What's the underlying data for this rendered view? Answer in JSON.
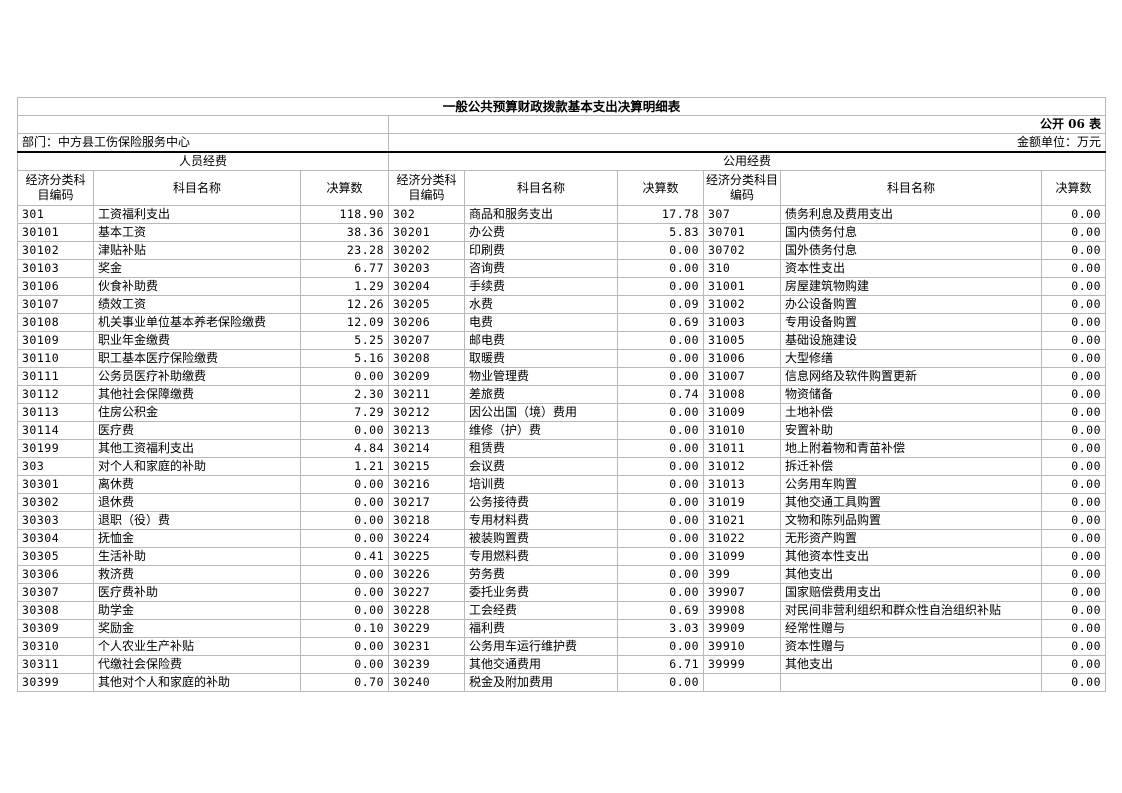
{
  "title": "一般公共预算财政拨款基本支出决算明细表",
  "table_no": "公开 06 表",
  "department": "部门：中方县工伤保险服务中心",
  "unit": "金额单位：万元",
  "sections": {
    "personnel": "人员经费",
    "public": "公用经费"
  },
  "headers": {
    "code": "经济分类科目编码",
    "name": "科目名称",
    "amount": "决算数"
  },
  "personnel_rows": [
    {
      "code": "301",
      "name": "工资福利支出",
      "amount": "118.90"
    },
    {
      "code": "30101",
      "name": "基本工资",
      "amount": "38.36"
    },
    {
      "code": "30102",
      "name": "津贴补贴",
      "amount": "23.28"
    },
    {
      "code": "30103",
      "name": "奖金",
      "amount": "6.77"
    },
    {
      "code": "30106",
      "name": "伙食补助费",
      "amount": "1.29"
    },
    {
      "code": "30107",
      "name": "绩效工资",
      "amount": "12.26"
    },
    {
      "code": "30108",
      "name": "机关事业单位基本养老保险缴费",
      "amount": "12.09"
    },
    {
      "code": "30109",
      "name": "职业年金缴费",
      "amount": "5.25"
    },
    {
      "code": "30110",
      "name": "职工基本医疗保险缴费",
      "amount": "5.16"
    },
    {
      "code": "30111",
      "name": "公务员医疗补助缴费",
      "amount": "0.00"
    },
    {
      "code": "30112",
      "name": "其他社会保障缴费",
      "amount": "2.30"
    },
    {
      "code": "30113",
      "name": "住房公积金",
      "amount": "7.29"
    },
    {
      "code": "30114",
      "name": "医疗费",
      "amount": "0.00"
    },
    {
      "code": "30199",
      "name": "其他工资福利支出",
      "amount": "4.84"
    },
    {
      "code": "303",
      "name": "对个人和家庭的补助",
      "amount": "1.21"
    },
    {
      "code": "30301",
      "name": "离休费",
      "amount": "0.00"
    },
    {
      "code": "30302",
      "name": "退休费",
      "amount": "0.00"
    },
    {
      "code": "30303",
      "name": "退职（役）费",
      "amount": "0.00"
    },
    {
      "code": "30304",
      "name": "抚恤金",
      "amount": "0.00"
    },
    {
      "code": "30305",
      "name": "生活补助",
      "amount": "0.41"
    },
    {
      "code": "30306",
      "name": "救济费",
      "amount": "0.00"
    },
    {
      "code": "30307",
      "name": "医疗费补助",
      "amount": "0.00"
    },
    {
      "code": "30308",
      "name": "助学金",
      "amount": "0.00"
    },
    {
      "code": "30309",
      "name": "奖励金",
      "amount": "0.10"
    },
    {
      "code": "30310",
      "name": "个人农业生产补贴",
      "amount": "0.00"
    },
    {
      "code": "30311",
      "name": "代缴社会保险费",
      "amount": "0.00"
    },
    {
      "code": "30399",
      "name": "其他对个人和家庭的补助",
      "amount": "0.70"
    }
  ],
  "public_rows_a": [
    {
      "code": "302",
      "name": "商品和服务支出",
      "amount": "17.78"
    },
    {
      "code": "30201",
      "name": "办公费",
      "amount": "5.83"
    },
    {
      "code": "30202",
      "name": "印刷费",
      "amount": "0.00"
    },
    {
      "code": "30203",
      "name": "咨询费",
      "amount": "0.00"
    },
    {
      "code": "30204",
      "name": "手续费",
      "amount": "0.00"
    },
    {
      "code": "30205",
      "name": "水费",
      "amount": "0.09"
    },
    {
      "code": "30206",
      "name": "电费",
      "amount": "0.69"
    },
    {
      "code": "30207",
      "name": "邮电费",
      "amount": "0.00"
    },
    {
      "code": "30208",
      "name": "取暖费",
      "amount": "0.00"
    },
    {
      "code": "30209",
      "name": "物业管理费",
      "amount": "0.00"
    },
    {
      "code": "30211",
      "name": "差旅费",
      "amount": "0.74"
    },
    {
      "code": "30212",
      "name": "因公出国（境）费用",
      "amount": "0.00"
    },
    {
      "code": "30213",
      "name": "维修（护）费",
      "amount": "0.00"
    },
    {
      "code": "30214",
      "name": "租赁费",
      "amount": "0.00"
    },
    {
      "code": "30215",
      "name": "会议费",
      "amount": "0.00"
    },
    {
      "code": "30216",
      "name": "培训费",
      "amount": "0.00"
    },
    {
      "code": "30217",
      "name": "公务接待费",
      "amount": "0.00"
    },
    {
      "code": "30218",
      "name": "专用材料费",
      "amount": "0.00"
    },
    {
      "code": "30224",
      "name": "被装购置费",
      "amount": "0.00"
    },
    {
      "code": "30225",
      "name": "专用燃料费",
      "amount": "0.00"
    },
    {
      "code": "30226",
      "name": "劳务费",
      "amount": "0.00"
    },
    {
      "code": "30227",
      "name": "委托业务费",
      "amount": "0.00"
    },
    {
      "code": "30228",
      "name": "工会经费",
      "amount": "0.69"
    },
    {
      "code": "30229",
      "name": "福利费",
      "amount": "3.03"
    },
    {
      "code": "30231",
      "name": "公务用车运行维护费",
      "amount": "0.00"
    },
    {
      "code": "30239",
      "name": "其他交通费用",
      "amount": "6.71"
    },
    {
      "code": "30240",
      "name": "税金及附加费用",
      "amount": "0.00"
    }
  ],
  "public_rows_b": [
    {
      "code": "307",
      "name": "债务利息及费用支出",
      "amount": "0.00"
    },
    {
      "code": "30701",
      "name": "国内债务付息",
      "amount": "0.00"
    },
    {
      "code": "30702",
      "name": "国外债务付息",
      "amount": "0.00"
    },
    {
      "code": "310",
      "name": "资本性支出",
      "amount": "0.00"
    },
    {
      "code": "31001",
      "name": "房屋建筑物购建",
      "amount": "0.00"
    },
    {
      "code": "31002",
      "name": "办公设备购置",
      "amount": "0.00"
    },
    {
      "code": "31003",
      "name": "专用设备购置",
      "amount": "0.00"
    },
    {
      "code": "31005",
      "name": "基础设施建设",
      "amount": "0.00"
    },
    {
      "code": "31006",
      "name": "大型修缮",
      "amount": "0.00"
    },
    {
      "code": "31007",
      "name": "信息网络及软件购置更新",
      "amount": "0.00"
    },
    {
      "code": "31008",
      "name": "物资储备",
      "amount": "0.00"
    },
    {
      "code": "31009",
      "name": "土地补偿",
      "amount": "0.00"
    },
    {
      "code": "31010",
      "name": "安置补助",
      "amount": "0.00"
    },
    {
      "code": "31011",
      "name": "地上附着物和青苗补偿",
      "amount": "0.00"
    },
    {
      "code": "31012",
      "name": "拆迁补偿",
      "amount": "0.00"
    },
    {
      "code": "31013",
      "name": "公务用车购置",
      "amount": "0.00"
    },
    {
      "code": "31019",
      "name": "其他交通工具购置",
      "amount": "0.00"
    },
    {
      "code": "31021",
      "name": "文物和陈列品购置",
      "amount": "0.00"
    },
    {
      "code": "31022",
      "name": "无形资产购置",
      "amount": "0.00"
    },
    {
      "code": "31099",
      "name": "其他资本性支出",
      "amount": "0.00"
    },
    {
      "code": "399",
      "name": "其他支出",
      "amount": "0.00"
    },
    {
      "code": "39907",
      "name": "国家赔偿费用支出",
      "amount": "0.00"
    },
    {
      "code": "39908",
      "name": "对民间非营利组织和群众性自治组织补贴",
      "amount": "0.00"
    },
    {
      "code": "39909",
      "name": "经常性赠与",
      "amount": "0.00"
    },
    {
      "code": "39910",
      "name": "资本性赠与",
      "amount": "0.00"
    },
    {
      "code": "39999",
      "name": "其他支出",
      "amount": "0.00"
    },
    {
      "code": "",
      "name": "",
      "amount": "0.00"
    }
  ]
}
